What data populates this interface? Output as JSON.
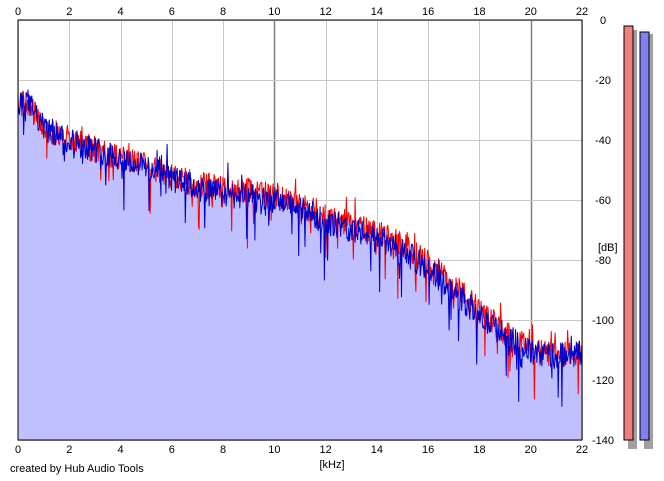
{
  "footer": "created by Hub Audio Tools",
  "colors": {
    "background": "#ffffff",
    "fill": "#c0c0ff",
    "left_channel": "#ff0000",
    "right_channel": "#0000cc",
    "grid": "#c8c8c8",
    "grid_major": "#808080",
    "meter_left": "#f08080",
    "meter_right": "#8080f0"
  },
  "chart_data": {
    "type": "line",
    "xlabel": "[kHz]",
    "ylabel": "[dB]",
    "xlim": [
      0,
      22
    ],
    "ylim": [
      -140,
      0
    ],
    "x_ticks": [
      "0",
      "2",
      "4",
      "6",
      "8",
      "10",
      "12",
      "14",
      "16",
      "18",
      "20",
      "22"
    ],
    "y_ticks": [
      "0",
      "-20",
      "-40",
      "-60",
      "-80",
      "-100",
      "-120",
      "-140"
    ],
    "grid": true,
    "series": [
      {
        "color": "#ff0000",
        "envelope_x": [
          0,
          0.3,
          1,
          2,
          3,
          4,
          5,
          6,
          7,
          8,
          9,
          10,
          11,
          12,
          13,
          14,
          15,
          16,
          17,
          18,
          19,
          20,
          21,
          22
        ],
        "envelope_y": [
          -29,
          -27,
          -36,
          -40,
          -43,
          -46,
          -49,
          -52,
          -55,
          -56,
          -57,
          -59,
          -62,
          -65,
          -68,
          -71,
          -75,
          -81,
          -88,
          -97,
          -104,
          -110,
          -112,
          -111
        ]
      },
      {
        "color": "#0000cc",
        "envelope_x": [
          0,
          0.3,
          1,
          2,
          3,
          4,
          5,
          6,
          7,
          8,
          9,
          10,
          11,
          12,
          13,
          14,
          15,
          16,
          17,
          18,
          19,
          20,
          21,
          22
        ],
        "envelope_y": [
          -30,
          -26,
          -36,
          -40,
          -43,
          -46,
          -49,
          -53,
          -56,
          -58,
          -59,
          -60,
          -63,
          -67,
          -70,
          -73,
          -77,
          -83,
          -90,
          -99,
          -105,
          -111,
          -112,
          -111
        ]
      }
    ],
    "meters": {
      "left_level_db": -2,
      "right_level_db": -4,
      "range_db": [
        -140,
        0
      ]
    }
  }
}
